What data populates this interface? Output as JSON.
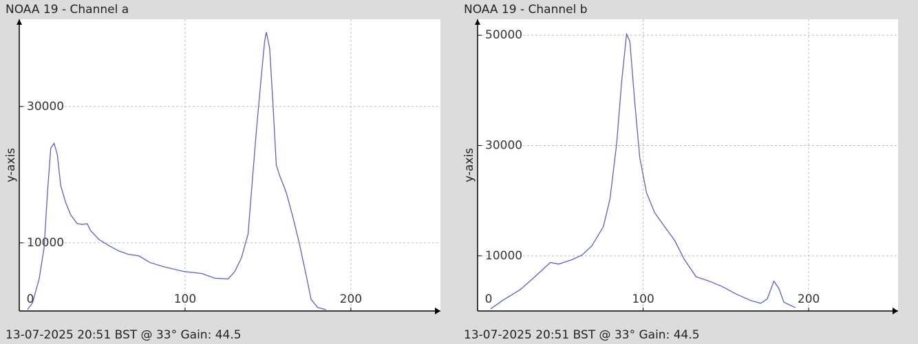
{
  "chart_data": [
    {
      "type": "line",
      "title": "NOAA 19 - Channel a",
      "ylabel": "y-axis",
      "footer": "13-07-2025 20:51 BST @ 33° Gain: 44.5",
      "color": "#5c5cd6",
      "grid": true,
      "xlim": [
        0,
        254
      ],
      "xticks": [
        0,
        100,
        200
      ],
      "ylim": [
        0,
        42800
      ],
      "yticks": [
        10000,
        30000
      ],
      "x": [
        5,
        8,
        12,
        15,
        17,
        19,
        21,
        23,
        25,
        28,
        31,
        35,
        38,
        41,
        43,
        48,
        54,
        60,
        66,
        72,
        79,
        87,
        99,
        110,
        118,
        126,
        130,
        134,
        138,
        140,
        143,
        146,
        148,
        149,
        151,
        153,
        155,
        157,
        161,
        165,
        169,
        173,
        176,
        180,
        185
      ],
      "values": [
        200,
        1200,
        4700,
        9300,
        17400,
        23900,
        24600,
        22900,
        18400,
        15900,
        14100,
        12800,
        12700,
        12800,
        11800,
        10500,
        9600,
        8800,
        8300,
        8100,
        7100,
        6500,
        5800,
        5500,
        4800,
        4700,
        5800,
        7800,
        11300,
        17400,
        26500,
        34500,
        39600,
        40900,
        38600,
        30500,
        21400,
        19900,
        17400,
        13800,
        9800,
        5300,
        1700,
        500,
        200
      ]
    },
    {
      "type": "line",
      "title": "NOAA 19 - Channel b",
      "ylabel": "y-axis",
      "footer": "13-07-2025 20:51 BST @ 33° Gain: 44.5",
      "color": "#5c5cd6",
      "grid": true,
      "xlim": [
        0,
        254
      ],
      "xticks": [
        0,
        100,
        200
      ],
      "ylim": [
        0,
        52900
      ],
      "yticks": [
        10000,
        30000,
        50000
      ],
      "x": [
        8,
        15,
        26,
        36,
        44,
        49,
        57,
        63,
        69,
        76,
        80,
        84,
        87,
        90,
        92,
        95,
        98,
        102,
        107,
        113,
        119,
        125,
        132,
        140,
        148,
        156,
        165,
        171,
        175,
        179,
        182,
        185,
        192
      ],
      "values": [
        400,
        1900,
        3900,
        6600,
        8800,
        8500,
        9300,
        10100,
        11800,
        15300,
        20300,
        30300,
        41500,
        50200,
        48900,
        37700,
        27800,
        21500,
        17800,
        15300,
        12800,
        9300,
        6200,
        5400,
        4400,
        3100,
        1900,
        1400,
        2200,
        5400,
        4100,
        1600,
        600
      ]
    }
  ]
}
